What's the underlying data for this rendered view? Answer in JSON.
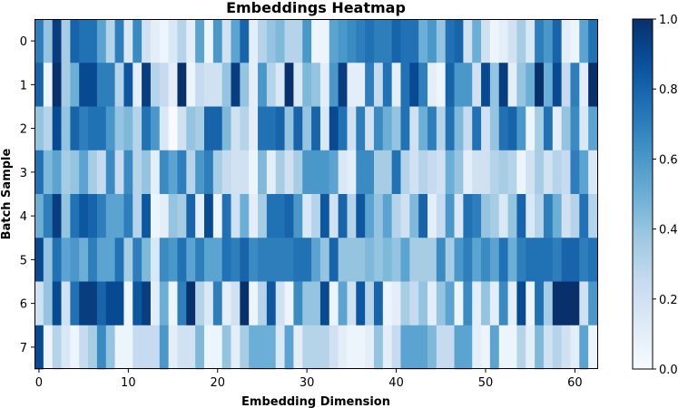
{
  "chart_data": {
    "type": "heatmap",
    "title": "Embeddings Heatmap",
    "xlabel": "Embedding Dimension",
    "ylabel": "Batch Sample",
    "x_ticks": [
      0,
      10,
      20,
      30,
      40,
      50,
      60
    ],
    "y_ticks": [
      0,
      1,
      2,
      3,
      4,
      5,
      6,
      7
    ],
    "colorbar_ticks": [
      "0.0",
      "0.2",
      "0.4",
      "0.6",
      "0.8",
      "1.0"
    ],
    "colormap": "Blues",
    "color_range": [
      0,
      1
    ],
    "n_rows": 8,
    "n_cols": 63,
    "values": [
      [
        0.7,
        0.4,
        0.95,
        0.35,
        0.8,
        0.75,
        0.75,
        0.55,
        0.3,
        0.7,
        0.15,
        0.65,
        0.2,
        0.1,
        0.05,
        0.15,
        0.3,
        0.1,
        0.55,
        0.05,
        0.6,
        0.2,
        0.55,
        0.8,
        0.1,
        0.3,
        0.4,
        0.45,
        0.3,
        0.3,
        0.6,
        0.05,
        0.05,
        0.55,
        0.6,
        0.65,
        0.7,
        0.75,
        0.7,
        0.7,
        0.8,
        0.75,
        0.75,
        0.5,
        0.6,
        0.4,
        0.75,
        0.8,
        0.2,
        0.5,
        0.2,
        0.05,
        0.1,
        0.2,
        0.35,
        0.15,
        0.7,
        0.6,
        0.8,
        0.1,
        0.05,
        0.55,
        0.75
      ],
      [
        0.8,
        0.05,
        1.0,
        0.35,
        0.5,
        0.9,
        0.9,
        0.7,
        0.7,
        0.3,
        0.85,
        0.1,
        0.95,
        0.3,
        0.25,
        0.1,
        1.0,
        0.05,
        0.25,
        0.2,
        0.2,
        0.4,
        0.95,
        0.4,
        0.1,
        0.6,
        0.3,
        0.15,
        1.0,
        0.15,
        0.45,
        0.4,
        0.1,
        0.6,
        0.95,
        0.1,
        0.1,
        0.7,
        0.25,
        0.75,
        0.1,
        0.75,
        0.9,
        0.7,
        0.1,
        0.05,
        0.8,
        0.6,
        0.6,
        0.2,
        0.9,
        0.4,
        0.95,
        0.1,
        0.4,
        0.5,
        1.0,
        0.5,
        0.9,
        0.25,
        0.7,
        0.1,
        1.0
      ],
      [
        0.4,
        0.3,
        0.9,
        0.4,
        0.8,
        0.7,
        0.75,
        0.75,
        0.6,
        0.4,
        0.45,
        0.3,
        0.75,
        0.6,
        0.15,
        0.0,
        0.2,
        0.4,
        0.35,
        0.8,
        0.8,
        0.45,
        0.2,
        0.3,
        0.1,
        0.75,
        0.75,
        0.8,
        0.4,
        0.8,
        0.4,
        0.8,
        0.15,
        0.9,
        0.75,
        0.2,
        0.7,
        0.2,
        0.65,
        0.5,
        0.4,
        0.75,
        0.2,
        0.5,
        0.7,
        0.3,
        0.75,
        0.45,
        0.25,
        0.75,
        0.2,
        0.4,
        0.75,
        0.8,
        0.6,
        0.05,
        0.35,
        0.75,
        0.1,
        0.4,
        0.65,
        0.15,
        0.55
      ],
      [
        0.75,
        0.45,
        0.55,
        0.35,
        0.4,
        0.55,
        0.35,
        0.25,
        0.65,
        0.25,
        0.65,
        0.3,
        0.4,
        0.1,
        0.65,
        0.55,
        0.7,
        0.3,
        0.6,
        0.7,
        0.35,
        0.25,
        0.2,
        0.2,
        0.05,
        0.45,
        0.1,
        0.35,
        0.2,
        0.35,
        0.6,
        0.6,
        0.6,
        0.55,
        0.15,
        0.1,
        0.65,
        0.65,
        0.35,
        0.35,
        0.75,
        0.3,
        0.2,
        0.3,
        0.25,
        0.2,
        0.5,
        0.4,
        0.1,
        0.2,
        0.2,
        0.3,
        0.35,
        0.3,
        0.05,
        0.2,
        0.35,
        0.2,
        0.3,
        0.25,
        0.7,
        0.55,
        0.15
      ],
      [
        0.5,
        0.7,
        0.95,
        0.4,
        0.75,
        0.85,
        0.8,
        0.7,
        0.55,
        0.55,
        0.7,
        0.3,
        0.85,
        0.05,
        0.1,
        0.4,
        0.35,
        0.8,
        0.1,
        0.9,
        0.05,
        0.75,
        0.2,
        0.5,
        0.1,
        0.35,
        0.75,
        0.75,
        0.8,
        0.6,
        0.15,
        0.3,
        0.85,
        0.2,
        0.8,
        0.3,
        0.85,
        0.55,
        0.4,
        0.55,
        0.3,
        0.2,
        0.45,
        0.8,
        0.1,
        0.25,
        0.6,
        0.15,
        0.75,
        0.7,
        0.4,
        0.35,
        0.15,
        0.4,
        0.8,
        0.15,
        0.3,
        0.7,
        0.5,
        0.2,
        0.3,
        0.75,
        0.3
      ],
      [
        0.9,
        0.4,
        0.75,
        0.55,
        0.6,
        0.5,
        0.7,
        0.55,
        0.55,
        0.75,
        0.35,
        0.7,
        0.45,
        0.15,
        0.65,
        0.6,
        0.75,
        0.55,
        0.7,
        0.55,
        0.55,
        0.75,
        0.7,
        0.8,
        0.65,
        0.7,
        0.7,
        0.7,
        0.7,
        0.75,
        0.75,
        0.55,
        0.4,
        0.8,
        0.4,
        0.4,
        0.4,
        0.45,
        0.4,
        0.45,
        0.4,
        0.55,
        0.35,
        0.35,
        0.35,
        0.65,
        0.35,
        0.6,
        0.7,
        0.55,
        0.65,
        0.55,
        0.75,
        0.5,
        0.7,
        0.75,
        0.75,
        0.75,
        0.7,
        0.8,
        0.8,
        0.7,
        0.75
      ],
      [
        0.2,
        0.4,
        0.9,
        0.2,
        0.75,
        0.95,
        0.95,
        0.8,
        0.9,
        0.9,
        0.05,
        0.85,
        0.95,
        0.1,
        0.5,
        0.05,
        0.7,
        1.0,
        0.3,
        0.15,
        0.7,
        0.1,
        0.2,
        1.0,
        0.05,
        0.3,
        0.85,
        0.2,
        0.05,
        0.65,
        0.4,
        0.4,
        0.9,
        0.05,
        0.55,
        0.2,
        0.85,
        0.3,
        0.8,
        0.05,
        0.1,
        0.35,
        0.25,
        0.4,
        0.1,
        0.4,
        0.55,
        0.05,
        0.65,
        0.1,
        0.4,
        0.1,
        0.65,
        0.1,
        0.9,
        0.05,
        0.75,
        0.35,
        1.0,
        1.0,
        1.0,
        0.2,
        0.6
      ],
      [
        0.9,
        0.05,
        0.3,
        0.15,
        0.05,
        0.25,
        0.35,
        0.65,
        0.4,
        0.05,
        0.05,
        0.25,
        0.25,
        0.25,
        0.6,
        0.1,
        0.2,
        0.2,
        0.45,
        0.05,
        0.05,
        0.4,
        0.1,
        0.35,
        0.5,
        0.5,
        0.5,
        0.15,
        0.55,
        0.1,
        0.3,
        0.3,
        0.3,
        0.2,
        0.1,
        0.05,
        0.05,
        0.1,
        0.4,
        0.1,
        0.25,
        0.55,
        0.55,
        0.55,
        0.45,
        0.25,
        0.25,
        0.55,
        0.55,
        0.1,
        0.05,
        0.55,
        0.05,
        0.05,
        0.3,
        0.1,
        0.45,
        0.2,
        0.3,
        0.2,
        0.1,
        0.55,
        0.05
      ]
    ]
  }
}
